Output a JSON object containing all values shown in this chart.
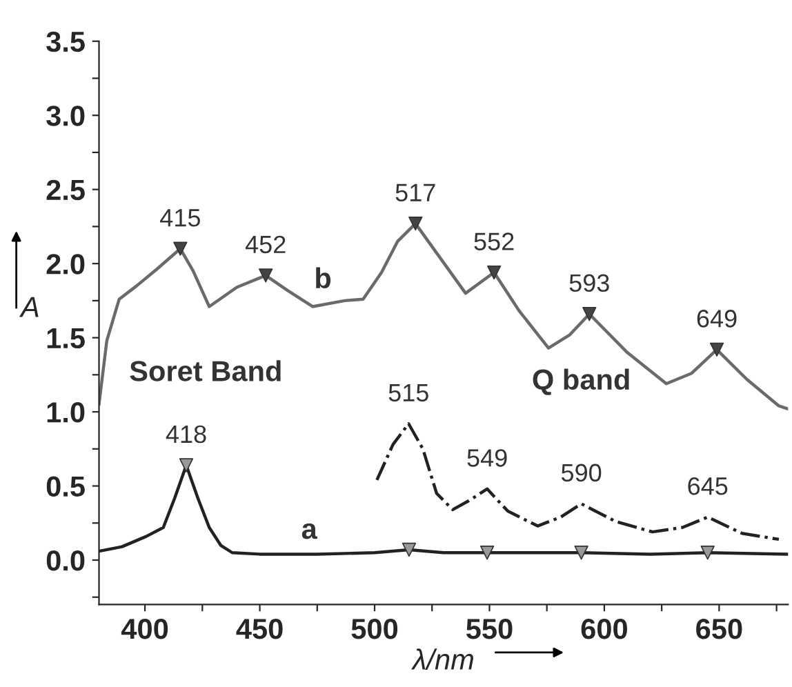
{
  "chart_data": {
    "type": "line",
    "xlabel": "λ/nm",
    "ylabel": "A",
    "xlim": [
      380,
      680
    ],
    "ylim": [
      -0.3,
      3.5
    ],
    "xticks": [
      400,
      {
        "value": 425,
        "label": null
      },
      450,
      {
        "value": 475,
        "label": null
      },
      500,
      {
        "value": 525,
        "label": null
      },
      550,
      {
        "value": 575,
        "label": null
      },
      600,
      {
        "value": 625,
        "label": null
      },
      650,
      {
        "value": 675,
        "label": null
      }
    ],
    "yticks": [
      {
        "value": -0.25,
        "label": null
      },
      {
        "value": 0,
        "label": "0.0"
      },
      {
        "value": 0.25,
        "label": null
      },
      0.5,
      {
        "value": 0.75,
        "label": null
      },
      {
        "value": 1,
        "label": "1.0"
      },
      {
        "value": 1.25,
        "label": null
      },
      1.5,
      {
        "value": 1.75,
        "label": null
      },
      {
        "value": 2,
        "label": "2.0"
      },
      {
        "value": 2.25,
        "label": null
      },
      2.5,
      {
        "value": 2.75,
        "label": null
      },
      {
        "value": 3,
        "label": "3.0"
      },
      {
        "value": 3.25,
        "label": null
      },
      3.5
    ],
    "grid": false,
    "legend": false,
    "series": [
      {
        "color": "#6a6a6a",
        "line_style": "solid",
        "x": [
          380,
          383.4,
          388.8,
          396.4,
          405,
          415.4,
          421,
          428,
          440,
          452.6,
          462,
          473,
          487,
          495,
          503,
          510,
          517.8,
          528,
          539.6,
          552,
          563,
          575.7,
          585,
          593.5,
          610,
          627,
          638,
          649,
          662,
          676,
          680
        ],
        "values": [
          1.05,
          1.48,
          1.76,
          1.85,
          1.96,
          2.1,
          1.95,
          1.71,
          1.84,
          1.92,
          1.82,
          1.71,
          1.75,
          1.76,
          1.94,
          2.15,
          2.27,
          2.05,
          1.8,
          1.94,
          1.68,
          1.43,
          1.52,
          1.66,
          1.4,
          1.19,
          1.26,
          1.42,
          1.22,
          1.04,
          1.02
        ]
      },
      {
        "color": "#222222",
        "line_style": "solid",
        "x": [
          380,
          390,
          400.6,
          408,
          413,
          418,
          423,
          428,
          433,
          438,
          450,
          475,
          500,
          515,
          530,
          549,
          570,
          590,
          620,
          645,
          680
        ],
        "values": [
          0.06,
          0.09,
          0.16,
          0.22,
          0.42,
          0.64,
          0.42,
          0.22,
          0.1,
          0.05,
          0.04,
          0.04,
          0.05,
          0.07,
          0.05,
          0.05,
          0.05,
          0.05,
          0.04,
          0.05,
          0.04
        ]
      },
      {
        "color": "#222222",
        "line_style": "dashdot",
        "x": [
          501,
          508,
          514.8,
          521,
          527,
          534,
          541,
          549,
          558,
          571,
          581,
          590,
          605,
          621,
          634,
          645,
          660,
          676
        ],
        "values": [
          0.54,
          0.78,
          0.92,
          0.75,
          0.45,
          0.34,
          0.4,
          0.48,
          0.33,
          0.23,
          0.29,
          0.38,
          0.26,
          0.19,
          0.22,
          0.29,
          0.18,
          0.14
        ]
      },
      {
        "type": "scatter",
        "marker": "triangle",
        "color": "#444444",
        "x": [
          415.4,
          452.6,
          517.8,
          552,
          593.5,
          649
        ],
        "values": [
          2.1,
          1.92,
          2.27,
          1.94,
          1.66,
          1.42
        ]
      },
      {
        "type": "scatter",
        "marker": "triangle",
        "color": "#999999",
        "x": [
          418,
          515,
          549,
          590,
          645
        ],
        "values": [
          0.64,
          0.07,
          0.05,
          0.05,
          0.05
        ]
      }
    ],
    "annotations": [
      {
        "text": "415",
        "x": 415.4,
        "y": 2.1
      },
      {
        "text": "452",
        "x": 452.6,
        "y": 1.92
      },
      {
        "text": "517",
        "x": 517.8,
        "y": 2.27
      },
      {
        "text": "552",
        "x": 552,
        "y": 1.94
      },
      {
        "text": "593",
        "x": 593.5,
        "y": 1.66
      },
      {
        "text": "649",
        "x": 649,
        "y": 1.42
      },
      {
        "text": "418",
        "x": 418,
        "y": 0.64
      },
      {
        "text": "515",
        "x": 514.8,
        "y": 0.92
      },
      {
        "text": "549",
        "x": 549,
        "y": 0.48
      },
      {
        "text": "590",
        "x": 590,
        "y": 0.38
      },
      {
        "text": "645",
        "x": 645,
        "y": 0.29
      },
      "b",
      "a",
      "Soret Band",
      "Q band"
    ]
  }
}
